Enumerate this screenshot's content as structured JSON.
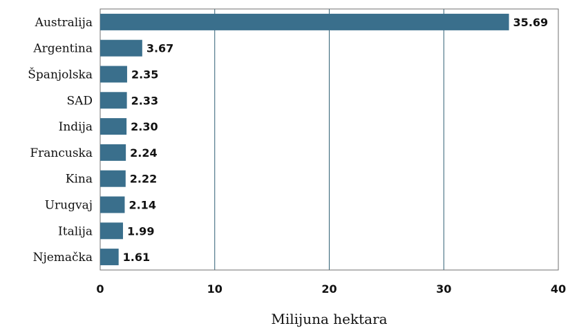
{
  "chart_data": {
    "type": "bar",
    "orientation": "horizontal",
    "categories": [
      "Australija",
      "Argentina",
      "Španjolska",
      "SAD",
      "Indija",
      "Francuska",
      "Kina",
      "Urugvaj",
      "Italija",
      "Njemačka"
    ],
    "values": [
      35.69,
      3.67,
      2.35,
      2.33,
      2.3,
      2.24,
      2.22,
      2.14,
      1.99,
      1.61
    ],
    "value_labels": [
      "35.69",
      "3.67",
      "2.35",
      "2.33",
      "2.30",
      "2.24",
      "2.22",
      "2.14",
      "1.99",
      "1.61"
    ],
    "xticks": [
      0,
      10,
      20,
      30,
      40
    ],
    "xlim": [
      0,
      40
    ],
    "xlabel": "Milijuna hektara",
    "grid": "vertical",
    "legend": "none",
    "colors": {
      "bar": "#3a6f8c",
      "gridline": "#2f5f73",
      "frame": "#6f6f6f"
    }
  }
}
